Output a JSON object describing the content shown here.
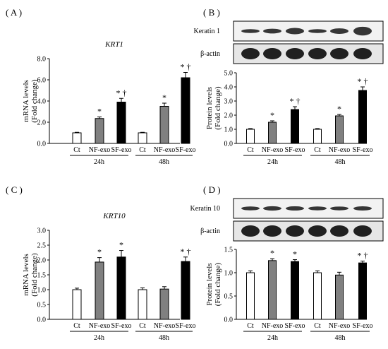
{
  "chart_data": [
    {
      "panel": "( A )",
      "type": "bar",
      "title": "KRT1",
      "ylabel": [
        "mRNA levels",
        "(Fold change)"
      ],
      "ylim": [
        0,
        8.0
      ],
      "yticks": [
        "0.0",
        "2.0",
        "4.0",
        "6.0",
        "8.0"
      ],
      "categories": [
        "Ct",
        "NF-exo",
        "SF-exo",
        "Ct",
        "NF-exo",
        "SF-exo"
      ],
      "groups": [
        "24h",
        "48h"
      ],
      "values": [
        1.0,
        2.35,
        3.9,
        1.0,
        3.5,
        6.2
      ],
      "errors": [
        0.05,
        0.15,
        0.35,
        0.05,
        0.3,
        0.5
      ],
      "annotations": [
        "",
        "*",
        "* †",
        "",
        "*",
        "* †"
      ]
    },
    {
      "panel": "( B )",
      "type": "bar",
      "title": "",
      "blot_labels": [
        "Keratin 1",
        "β-actin"
      ],
      "ylabel": [
        "Protein levels",
        "(Fold change)"
      ],
      "ylim": [
        0,
        5.0
      ],
      "yticks": [
        "0.0",
        "1.0",
        "2.0",
        "3.0",
        "4.0",
        "5.0"
      ],
      "categories": [
        "Ct",
        "NF-exo",
        "SF-exo",
        "Ct",
        "NF-exo",
        "SF-exo"
      ],
      "groups": [
        "24h",
        "48h"
      ],
      "values": [
        1.0,
        1.5,
        2.4,
        1.0,
        1.95,
        3.75
      ],
      "errors": [
        0.05,
        0.1,
        0.2,
        0.05,
        0.1,
        0.25
      ],
      "annotations": [
        "",
        "*",
        "* †",
        "",
        "*",
        "* †"
      ]
    },
    {
      "panel": "( C )",
      "type": "bar",
      "title": "KRT10",
      "ylabel": [
        "mRNA levels",
        "(Fold change)"
      ],
      "ylim": [
        0,
        3.0
      ],
      "yticks": [
        "0.0",
        "0.5",
        "1.0",
        "1.5",
        "2.0",
        "2.5",
        "3.0"
      ],
      "categories": [
        "Ct",
        "NF-exo",
        "SF-exo",
        "Ct",
        "NF-exo",
        "SF-exo"
      ],
      "groups": [
        "24h",
        "48h"
      ],
      "values": [
        1.0,
        1.93,
        2.1,
        1.0,
        1.02,
        1.95
      ],
      "errors": [
        0.05,
        0.15,
        0.22,
        0.06,
        0.08,
        0.15
      ],
      "annotations": [
        "",
        "*",
        "*",
        "",
        "",
        "* †"
      ]
    },
    {
      "panel": "( D )",
      "type": "bar",
      "title": "",
      "blot_labels": [
        "Keratin 10",
        "β-actin"
      ],
      "ylabel": [
        "Protein levels",
        "(Fold change)"
      ],
      "ylim": [
        0,
        1.5
      ],
      "yticks": [
        "0.0",
        "0.5",
        "1.0",
        "1.5"
      ],
      "categories": [
        "Ct",
        "NF-exo",
        "SF-exo",
        "Ct",
        "NF-exo",
        "SF-exo"
      ],
      "groups": [
        "24h",
        "48h"
      ],
      "values": [
        1.0,
        1.26,
        1.24,
        1.0,
        0.95,
        1.21
      ],
      "errors": [
        0.04,
        0.04,
        0.04,
        0.04,
        0.06,
        0.04
      ],
      "annotations": [
        "",
        "*",
        "*",
        "",
        "",
        "* †"
      ]
    }
  ],
  "colors": {
    "ct": "#ffffff",
    "nf_exo": "#808080",
    "sf_exo": "#000000",
    "blot_band": "#151515",
    "blot_background": "#e6e6e6"
  }
}
